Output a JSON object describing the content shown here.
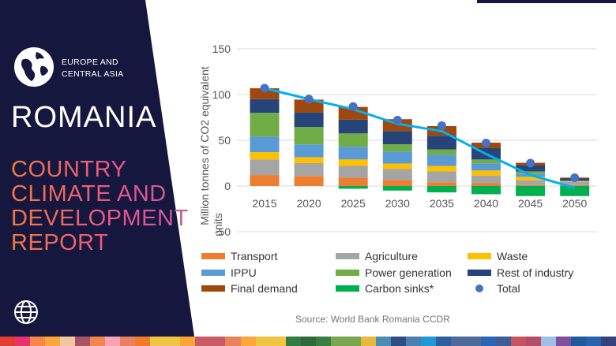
{
  "panel": {
    "region_line1": "EUROPE AND",
    "region_line2": "CENTRAL ASIA",
    "country": "ROMANIA",
    "report_lines": [
      "COUNTRY",
      "CLIMATE AND",
      "DEVELOPMENT",
      "REPORT"
    ]
  },
  "source": "Source: World Bank Romania CCDR",
  "strip_colors": [
    "#e43d30",
    "#e8336f",
    "#f5874a",
    "#fca73a",
    "#f2c7a0",
    "#a95465",
    "#f0884d",
    "#f6a3b5",
    "#e7805e",
    "#f07a26",
    "#f0c542",
    "#f0c542",
    "#faa634",
    "#c75c65",
    "#c75c65",
    "#e6855c",
    "#fca73a",
    "#f0c542",
    "#f0c542",
    "#347a43",
    "#2d6a3a",
    "#3a7c45",
    "#77a64f",
    "#77a64f",
    "#e7b93c",
    "#4a8cb4",
    "#2b4f82",
    "#4a7fb0",
    "#2098d1",
    "#2b5f9e",
    "#4b6a9a",
    "#4b6a9a",
    "#2a64b2",
    "#3d5e92",
    "#c25560",
    "#b34e68",
    "#9fbfe5",
    "#7d4f9d",
    "#1d5a9b",
    "#2762ab",
    "#34417c"
  ],
  "chart_data": {
    "type": "bar",
    "stacked": true,
    "categories": [
      "2015",
      "2020",
      "2025",
      "2030",
      "2035",
      "2040",
      "2045",
      "2050"
    ],
    "ylabel": "Million tonnes of CO2 equivalent units",
    "ylim": [
      -50,
      150
    ],
    "yticks": [
      150,
      100,
      50,
      0,
      -50
    ],
    "grid": true,
    "legend_position": "bottom",
    "series": [
      {
        "name": "Transport",
        "color": "#ED7D31",
        "values": [
          12,
          11,
          9,
          6.6,
          4,
          3,
          1,
          1
        ]
      },
      {
        "name": "Agriculture",
        "color": "#A5A5A5",
        "values": [
          17,
          14,
          13,
          12,
          12,
          8.5,
          5.3,
          3.6
        ]
      },
      {
        "name": "Waste",
        "color": "#FFC000",
        "values": [
          8,
          6.5,
          7,
          6,
          6,
          5.5,
          3.7,
          0.5
        ]
      },
      {
        "name": "IPPU",
        "color": "#5B9BD5",
        "values": [
          17,
          14,
          14,
          13,
          12,
          7.7,
          3.2,
          0.3
        ]
      },
      {
        "name": "Power generation",
        "color": "#70AD47",
        "values": [
          26,
          19,
          14.5,
          8,
          6,
          4.3,
          2.8,
          0.3
        ]
      },
      {
        "name": "Rest of industry",
        "color": "#264478",
        "values": [
          15,
          16,
          15,
          14.5,
          15,
          12.4,
          6.4,
          2.5
        ]
      },
      {
        "name": "Final demand",
        "color": "#9E480E",
        "values": [
          12,
          14,
          14,
          13,
          10.5,
          6,
          3,
          1
        ]
      },
      {
        "name": "Carbon sinks*",
        "color": "#00B050",
        "values": [
          0,
          0,
          -3,
          -5,
          -7,
          -9,
          -11,
          -11
        ]
      }
    ],
    "total": {
      "name": "Total",
      "color": "#4472C4",
      "values": [
        107,
        95,
        87,
        72,
        66,
        47,
        25,
        9
      ]
    },
    "trend_line": {
      "color": "#00B0F0",
      "values": [
        107,
        95,
        84,
        68,
        60,
        35,
        12,
        -2
      ]
    }
  }
}
